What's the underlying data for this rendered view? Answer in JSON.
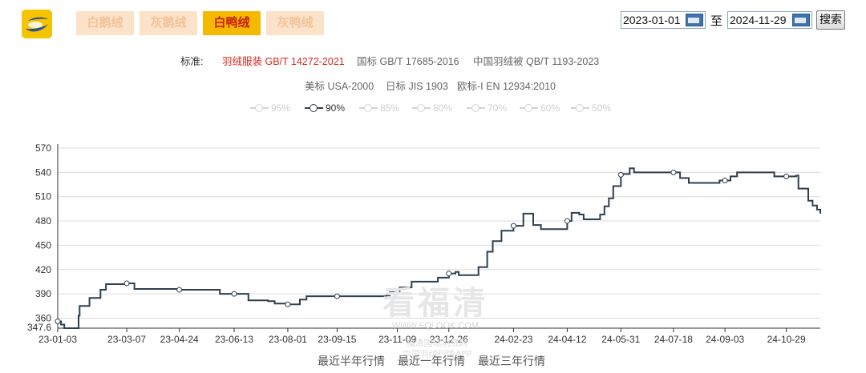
{
  "tabs": [
    {
      "label": "白鹅绒",
      "active": false
    },
    {
      "label": "灰鹅绒",
      "active": false
    },
    {
      "label": "白鸭绒",
      "active": true
    },
    {
      "label": "灰鸭绒",
      "active": false
    }
  ],
  "date_range": {
    "start": "2023-01-01",
    "separator": "至",
    "end": "2024-11-29",
    "search_label": "搜索"
  },
  "standards": {
    "prefix": "标准:",
    "items": [
      "羽绒服装 GB/T 14272-2021",
      "国标 GB/T 17685-2016",
      "中国羽绒被 QB/T 1193-2023",
      "美标 USA-2000",
      "日标 JIS 1903",
      "欧标-I EN 12934:2010"
    ],
    "active": "羽绒服装 GB/T 14272-2021"
  },
  "levels": [
    {
      "label": "95%",
      "active": false
    },
    {
      "label": "90%",
      "active": true
    },
    {
      "label": "85%",
      "active": false
    },
    {
      "label": "80%",
      "active": false
    },
    {
      "label": "70%",
      "active": false
    },
    {
      "label": "60%",
      "active": false
    },
    {
      "label": "50%",
      "active": false
    }
  ],
  "watermark": {
    "main": "看福清",
    "sub1": "WWW.FQLOOK.COM",
    "sub2": "福清国际羽绒网",
    "sub3": "中国羽绒行情APP"
  },
  "quick_links": [
    "最近半年行情",
    "最近一年行情",
    "最近三年行情"
  ],
  "colors": {
    "line": "#2f3f4e",
    "tab_active_bg": "#f6b900",
    "tab_active_text": "#c81e10",
    "std_active": "#d7281e"
  },
  "chart_data": {
    "type": "line",
    "series": [
      {
        "name": "90%",
        "points": [
          [
            "2023-01-03",
            356
          ],
          [
            "2023-01-06",
            352
          ],
          [
            "2023-01-09",
            347.6
          ],
          [
            "2023-01-20",
            347.6
          ],
          [
            "2023-01-22",
            363
          ],
          [
            "2023-01-23",
            375
          ],
          [
            "2023-02-01",
            385
          ],
          [
            "2023-02-11",
            395
          ],
          [
            "2023-02-16",
            402
          ],
          [
            "2023-03-07",
            403
          ],
          [
            "2023-03-14",
            396
          ],
          [
            "2023-04-24",
            395
          ],
          [
            "2023-05-29",
            395
          ],
          [
            "2023-05-31",
            390
          ],
          [
            "2023-06-13",
            390
          ],
          [
            "2023-06-24",
            390
          ],
          [
            "2023-06-26",
            382
          ],
          [
            "2023-07-14",
            381
          ],
          [
            "2023-07-20",
            378
          ],
          [
            "2023-08-01",
            377
          ],
          [
            "2023-08-08",
            377
          ],
          [
            "2023-08-12",
            383
          ],
          [
            "2023-08-18",
            387
          ],
          [
            "2023-09-15",
            387
          ],
          [
            "2023-10-16",
            387
          ],
          [
            "2023-10-30",
            388
          ],
          [
            "2023-11-02",
            392
          ],
          [
            "2023-11-11",
            398
          ],
          [
            "2023-11-22",
            405
          ],
          [
            "2023-12-05",
            405
          ],
          [
            "2023-12-16",
            410
          ],
          [
            "2023-12-26",
            415
          ],
          [
            "2024-01-01",
            417
          ],
          [
            "2024-01-04",
            413
          ],
          [
            "2024-01-20",
            413
          ],
          [
            "2024-01-22",
            423
          ],
          [
            "2024-01-30",
            442
          ],
          [
            "2024-02-04",
            455
          ],
          [
            "2024-02-12",
            468
          ],
          [
            "2024-02-23",
            474
          ],
          [
            "2024-03-03",
            489
          ],
          [
            "2024-03-12",
            475
          ],
          [
            "2024-03-19",
            470
          ],
          [
            "2024-04-06",
            470
          ],
          [
            "2024-04-12",
            480
          ],
          [
            "2024-04-16",
            490
          ],
          [
            "2024-04-23",
            488
          ],
          [
            "2024-04-27",
            482
          ],
          [
            "2024-05-08",
            482
          ],
          [
            "2024-05-12",
            488
          ],
          [
            "2024-05-16",
            498
          ],
          [
            "2024-05-20",
            508
          ],
          [
            "2024-05-24",
            523
          ],
          [
            "2024-05-31",
            537
          ],
          [
            "2024-06-02",
            538
          ],
          [
            "2024-06-08",
            545
          ],
          [
            "2024-06-12",
            540
          ],
          [
            "2024-07-18",
            540
          ],
          [
            "2024-07-24",
            533
          ],
          [
            "2024-08-01",
            527
          ],
          [
            "2024-08-24",
            527
          ],
          [
            "2024-08-29",
            530
          ],
          [
            "2024-09-03",
            530
          ],
          [
            "2024-09-08",
            535
          ],
          [
            "2024-09-14",
            540
          ],
          [
            "2024-10-14",
            540
          ],
          [
            "2024-10-18",
            535
          ],
          [
            "2024-10-29",
            535
          ],
          [
            "2024-11-07",
            536
          ],
          [
            "2024-11-09",
            520
          ],
          [
            "2024-11-16",
            520
          ],
          [
            "2024-11-18",
            505
          ],
          [
            "2024-11-22",
            499
          ],
          [
            "2024-11-26",
            494
          ],
          [
            "2024-11-29",
            489
          ]
        ],
        "markers": [
          [
            "2023-01-03",
            356
          ],
          [
            "2023-03-07",
            403
          ],
          [
            "2023-04-24",
            395
          ],
          [
            "2023-06-13",
            390
          ],
          [
            "2023-08-01",
            377
          ],
          [
            "2023-09-15",
            387
          ],
          [
            "2023-11-09",
            392
          ],
          [
            "2023-12-26",
            415
          ],
          [
            "2024-02-23",
            474
          ],
          [
            "2024-04-12",
            480
          ],
          [
            "2024-05-31",
            537
          ],
          [
            "2024-07-18",
            540
          ],
          [
            "2024-09-03",
            530
          ],
          [
            "2024-10-29",
            535
          ]
        ]
      }
    ],
    "x_ticks": [
      "23-01-03",
      "23-03-07",
      "23-04-24",
      "23-06-13",
      "23-08-01",
      "23-09-15",
      "23-11-09",
      "23-12-26",
      "24-02-23",
      "24-04-12",
      "24-05-31",
      "24-07-18",
      "24-09-03",
      "24-10-29"
    ],
    "x_tick_dates": [
      "2023-01-03",
      "2023-03-07",
      "2023-04-24",
      "2023-06-13",
      "2023-08-01",
      "2023-09-15",
      "2023-11-09",
      "2023-12-26",
      "2024-02-23",
      "2024-04-12",
      "2024-05-31",
      "2024-07-18",
      "2024-09-03",
      "2024-10-29"
    ],
    "y_ticks": [
      360,
      390,
      420,
      450,
      480,
      510,
      540,
      570
    ],
    "y_min_label": "347.6",
    "ylim": [
      347.6,
      570
    ],
    "xlim": [
      "2023-01-03",
      "2024-11-29"
    ],
    "grid": true
  }
}
